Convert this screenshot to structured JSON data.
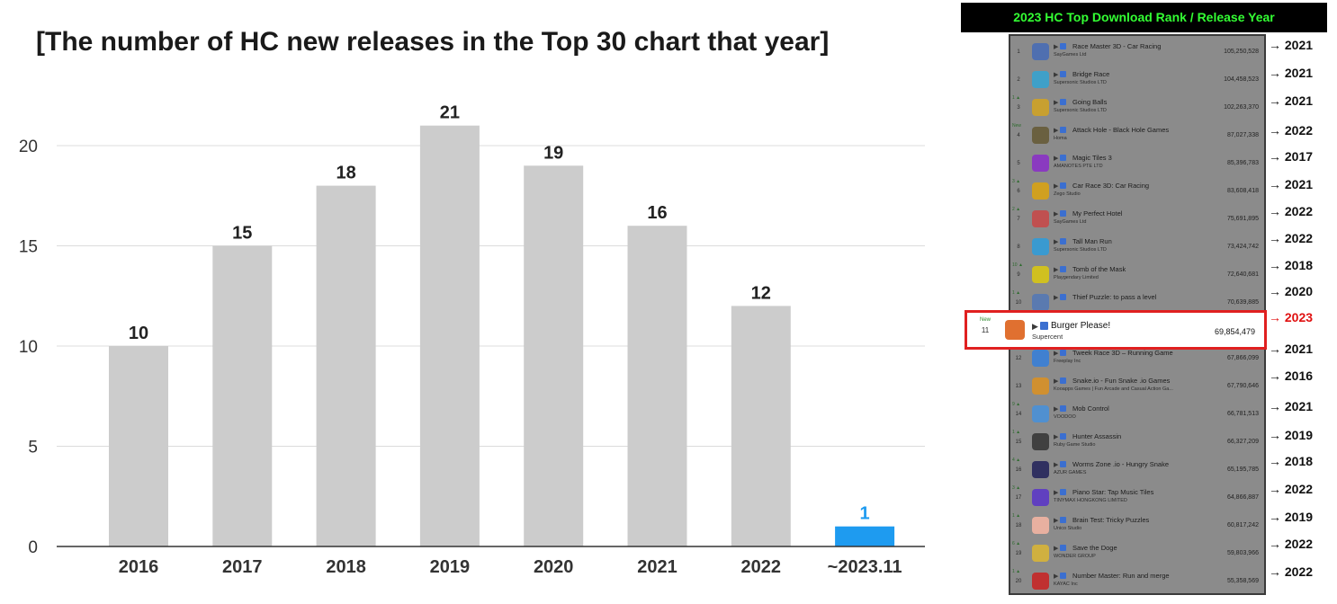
{
  "chart_data": {
    "type": "bar",
    "title": "[The number of HC new releases in the Top 30 chart that year]",
    "categories": [
      "2016",
      "2017",
      "2018",
      "2019",
      "2020",
      "2021",
      "2022",
      "~2023.11"
    ],
    "values": [
      10,
      15,
      18,
      21,
      19,
      16,
      12,
      1
    ],
    "value_labels": [
      "10",
      "15",
      "18",
      "21",
      "19",
      "16",
      "12",
      "1"
    ],
    "bar_colors": [
      "#cccccc",
      "#cccccc",
      "#cccccc",
      "#cccccc",
      "#cccccc",
      "#cccccc",
      "#cccccc",
      "#1e9bf0"
    ],
    "highlight_color": "#1e9bf0",
    "yticks": [
      0,
      5,
      10,
      15,
      20
    ],
    "ylim": [
      0,
      22
    ],
    "grid": true,
    "xlabel": "",
    "ylabel": ""
  },
  "rank_panel": {
    "header": "2023 HC Top Download Rank / Release Year",
    "arrow": "→",
    "rows": [
      {
        "rank": "1",
        "change": "",
        "app": "Race Master 3D - Car Racing",
        "developer": "SayGames Ltd",
        "downloads": "105,250,528",
        "year": "2021",
        "icon_color": "#4f6fb0",
        "highlight": false
      },
      {
        "rank": "2",
        "change": "",
        "app": "Bridge Race",
        "developer": "Supersonic Studios LTD",
        "downloads": "104,458,523",
        "year": "2021",
        "icon_color": "#3fa0c8",
        "highlight": false
      },
      {
        "rank": "3",
        "change": "1 ▲",
        "app": "Going Balls",
        "developer": "Supersonic Studios LTD",
        "downloads": "102,263,370",
        "year": "2021",
        "icon_color": "#c8a030",
        "highlight": false
      },
      {
        "rank": "4",
        "change": "New",
        "app": "Attack Hole - Black Hole Games",
        "developer": "Homa",
        "downloads": "87,027,338",
        "year": "2022",
        "icon_color": "#6a6040",
        "highlight": false
      },
      {
        "rank": "5",
        "change": "",
        "app": "Magic Tiles 3",
        "developer": "AMANOTES PTE LTD",
        "downloads": "85,396,783",
        "year": "2017",
        "icon_color": "#8a3ac0",
        "highlight": false
      },
      {
        "rank": "6",
        "change": "3 ▲",
        "app": "Car Race 3D: Car Racing",
        "developer": "Zego Studio",
        "downloads": "83,608,418",
        "year": "2021",
        "icon_color": "#d0a020",
        "highlight": false
      },
      {
        "rank": "7",
        "change": "2 ▲",
        "app": "My Perfect Hotel",
        "developer": "SayGames Ltd",
        "downloads": "75,691,895",
        "year": "2022",
        "icon_color": "#c05050",
        "highlight": false
      },
      {
        "rank": "8",
        "change": "",
        "app": "Tall Man Run",
        "developer": "Supersonic Studios LTD",
        "downloads": "73,424,742",
        "year": "2022",
        "icon_color": "#3a9ad0",
        "highlight": false
      },
      {
        "rank": "9",
        "change": "10 ▲",
        "app": "Tomb of the Mask",
        "developer": "Playgendary Limited",
        "downloads": "72,640,681",
        "year": "2018",
        "icon_color": "#d0c020",
        "highlight": false
      },
      {
        "rank": "10",
        "change": "1 ▲",
        "app": "Thief Puzzle: to pass a level",
        "developer": "",
        "downloads": "70,639,885",
        "year": "2020",
        "icon_color": "#5a7ab0",
        "highlight": false
      },
      {
        "rank": "11",
        "change": "New",
        "app": "Burger Please!",
        "developer": "Supercent",
        "downloads": "69,854,479",
        "year": "2023",
        "icon_color": "#e07030",
        "highlight": true
      },
      {
        "rank": "12",
        "change": "1 ▲",
        "app": "Tweek Race 3D – Running Game",
        "developer": "Freeplay Inc",
        "downloads": "67,866,099",
        "year": "2021",
        "icon_color": "#4080d0",
        "highlight": false
      },
      {
        "rank": "13",
        "change": "",
        "app": "Snake.io - Fun Snake .io Games",
        "developer": "Kooapps Games | Fun Arcade and Casual Action Ga...",
        "downloads": "67,790,646",
        "year": "2016",
        "icon_color": "#d09030",
        "highlight": false
      },
      {
        "rank": "14",
        "change": "9 ▲",
        "app": "Mob Control",
        "developer": "VOODOO",
        "downloads": "66,781,513",
        "year": "2021",
        "icon_color": "#5090d0",
        "highlight": false
      },
      {
        "rank": "15",
        "change": "1 ▲",
        "app": "Hunter Assassin",
        "developer": "Ruby Game Studio",
        "downloads": "66,327,209",
        "year": "2019",
        "icon_color": "#404040",
        "highlight": false
      },
      {
        "rank": "16",
        "change": "4 ▲",
        "app": "Worms Zone .io - Hungry Snake",
        "developer": "AZUR GAMES",
        "downloads": "65,195,785",
        "year": "2018",
        "icon_color": "#303060",
        "highlight": false
      },
      {
        "rank": "17",
        "change": "3 ▲",
        "app": "Piano Star: Tap Music Tiles",
        "developer": "TINYMAX HONGKONG LIMITED",
        "downloads": "64,866,887",
        "year": "2022",
        "icon_color": "#6040c0",
        "highlight": false
      },
      {
        "rank": "18",
        "change": "1 ▲",
        "app": "Brain Test: Tricky Puzzles",
        "developer": "Unico Studio",
        "downloads": "60,817,242",
        "year": "2019",
        "icon_color": "#e8b0a0",
        "highlight": false
      },
      {
        "rank": "19",
        "change": "6 ▲",
        "app": "Save the Doge",
        "developer": "WONDER GROUP",
        "downloads": "59,803,966",
        "year": "2022",
        "icon_color": "#d0b040",
        "highlight": false
      },
      {
        "rank": "20",
        "change": "1 ▲",
        "app": "Number Master: Run and merge",
        "developer": "KAYAC Inc",
        "downloads": "55,358,569",
        "year": "2022",
        "icon_color": "#c03030",
        "highlight": false
      }
    ]
  }
}
